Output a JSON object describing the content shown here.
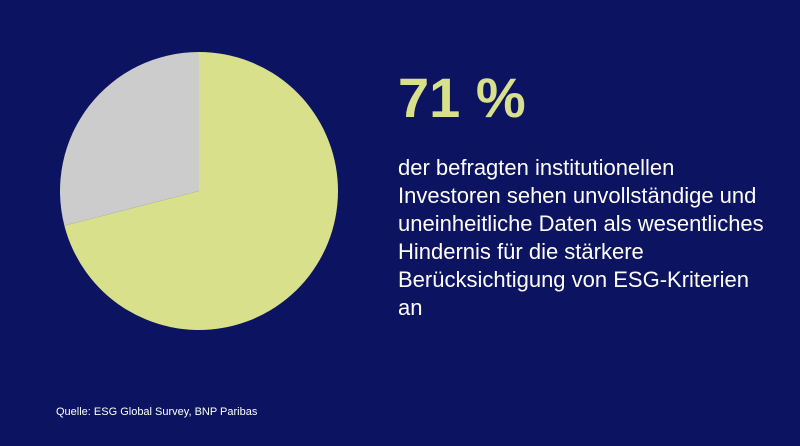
{
  "chart_data": {
    "type": "pie",
    "slices": [
      {
        "value": 71,
        "color": "#d8e08c"
      },
      {
        "value": 29,
        "color": "#cccccc"
      }
    ]
  },
  "stat": {
    "value": "71 %",
    "description": "der befragten institutionellen Investoren sehen unvollständige und uneinheitliche Daten als wesentliches Hindernis für die stärkere Berücksichtigung von ESG-Kriterien an"
  },
  "source": "Quelle: ESG Global Survey, BNP Paribas",
  "colors": {
    "background": "#0c1461",
    "accent": "#d8e08c",
    "text": "#ffffff"
  }
}
